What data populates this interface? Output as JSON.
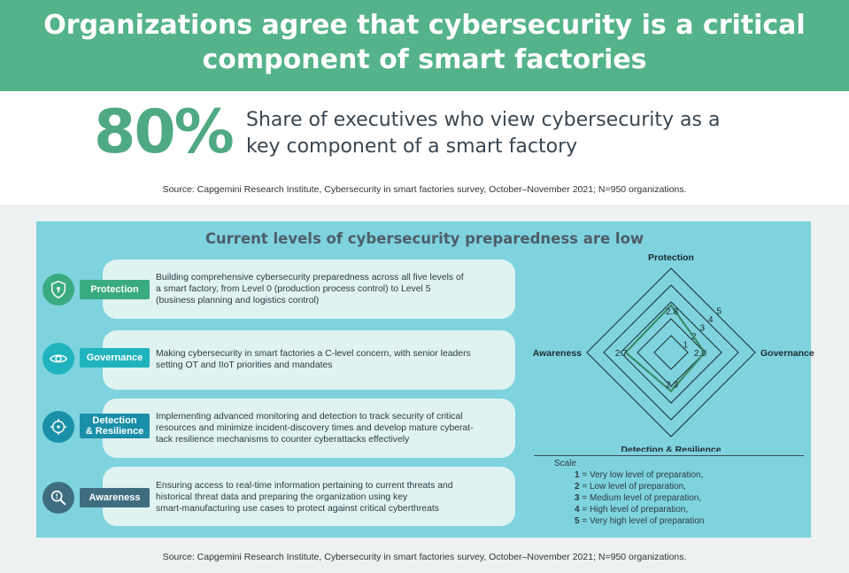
{
  "header": {
    "title_line1": "Organizations agree that cybersecurity is a critical",
    "title_line2": "component of smart factories"
  },
  "stat": {
    "value": "80%",
    "line1": "Share of executives who view cybersecurity as a",
    "line2": "key component of a smart factory"
  },
  "source_top": "Source: Capgemini Research Institute, Cybersecurity in smart factories survey, October–November 2021; N=950 organizations.",
  "panel": {
    "title": "Current levels of cybersecurity preparedness are low",
    "rows": [
      {
        "label_line1": "Protection",
        "label_line2": "",
        "desc_line1": "Building comprehensive cybersecurity preparedness across all five levels of",
        "desc_line2": "a smart factory, from Level 0 (production process control) to Level 5",
        "desc_line3": "(business planning and logistics control)",
        "icon": "shield-lock-icon",
        "color": "#3aab80"
      },
      {
        "label_line1": "Governance",
        "label_line2": "",
        "desc_line1": "Making cybersecurity in smart factories a C-level concern, with senior leaders",
        "desc_line2": "setting OT and IIoT priorities and mandates",
        "desc_line3": "",
        "icon": "eye-icon",
        "color": "#1fb4bd"
      },
      {
        "label_line1": "Detection",
        "label_line2": "& Resilience",
        "desc_line1": "Implementing advanced monitoring and detection to track security of critical",
        "desc_line2": "resources and minimize incident-discovery times and develop mature cyberat-",
        "desc_line3": "tack resilience mechanisms to counter cyberattacks effectively",
        "icon": "target-icon",
        "color": "#1a8fa8"
      },
      {
        "label_line1": "Awareness",
        "label_line2": "",
        "desc_line1": "Ensuring access to real-time information pertaining to current threats and",
        "desc_line2": "historical threat data and preparing the organization using key",
        "desc_line3": "smart-manufacturing use cases to protect against critical cyberthreats",
        "icon": "magnifier-icon",
        "color": "#3e6d80"
      }
    ],
    "scale": {
      "title": "Scale",
      "items": [
        {
          "num": "1",
          "text": " = Very low level of preparation,"
        },
        {
          "num": "2",
          "text": " = Low level of preparation,"
        },
        {
          "num": "3",
          "text": " = Medium level of preparation,"
        },
        {
          "num": "4",
          "text": " = High level of preparation,"
        },
        {
          "num": "5",
          "text": " = Very high level of preparation"
        }
      ]
    }
  },
  "chart_data": {
    "type": "radar",
    "axes": [
      "Protection",
      "Governance",
      "Detection & Resilience",
      "Awareness"
    ],
    "values": [
      2.8,
      2.0,
      2.3,
      2.7
    ],
    "value_labels": [
      "2.8",
      "2.0",
      "2.3",
      "2.7"
    ],
    "rings": [
      1,
      2,
      3,
      4,
      5
    ],
    "ring_labels": [
      "1",
      "2",
      "3",
      "4",
      "5"
    ],
    "range": [
      0,
      5
    ],
    "series_color": "#3d8a6a",
    "grid_color": "#1d2a30"
  },
  "source_bottom": "Source: Capgemini Research Institute, Cybersecurity in smart factories survey, October–November 2021; N=950 organizations."
}
